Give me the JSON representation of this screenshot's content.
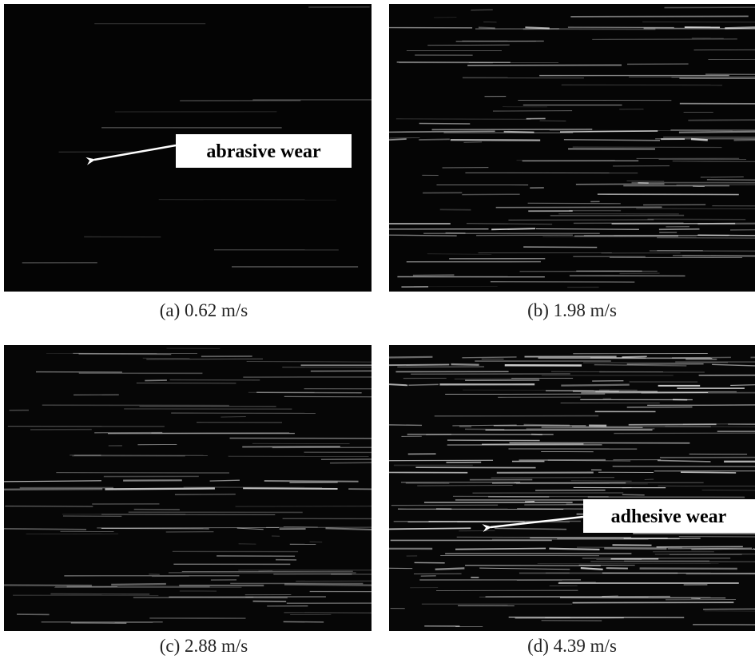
{
  "panels": [
    {
      "caption": "(a) 0.62 m/s",
      "annotation": "abrasive wear"
    },
    {
      "caption": "(b) 1.98 m/s"
    },
    {
      "caption": "(c) 2.88 m/s"
    },
    {
      "caption": "(d) 4.39 m/s",
      "annotation": "adhesive wear"
    }
  ]
}
